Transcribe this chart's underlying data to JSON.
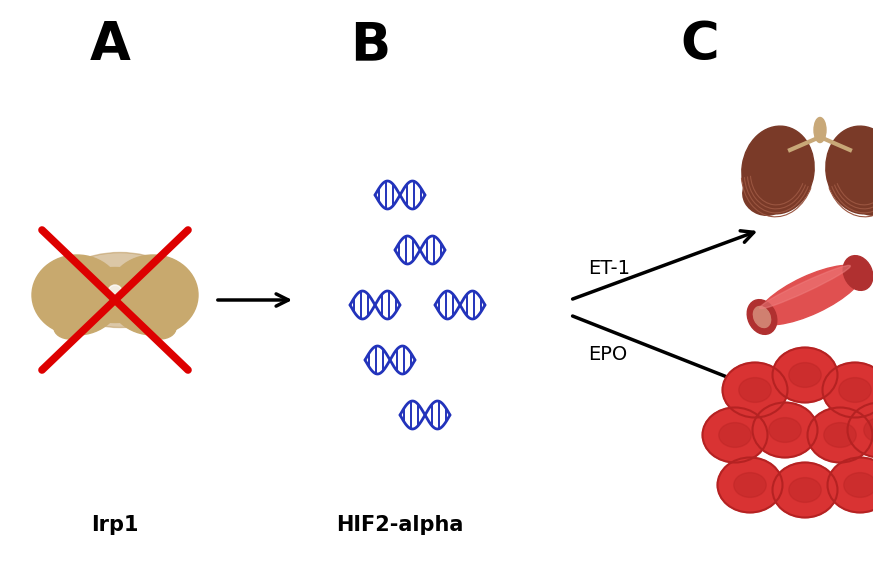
{
  "bg_color": "#ffffff",
  "panel_labels": [
    "A",
    "B",
    "C"
  ],
  "panel_label_fontsize": 38,
  "panel_label_fontweight": "bold",
  "caption_labels": [
    "Irp1",
    "HIF2-alpha"
  ],
  "caption_fontsize": 15,
  "label_fontsize": 14,
  "dna_color": "#2233bb",
  "cross_color": "#dd0000",
  "kidney_color_main": "#c8a96e",
  "kidney_color_dark": "#b89050",
  "lung_color": "#7a3a28",
  "lung_color_light": "#a05040",
  "vessel_color": "#e05050",
  "vessel_color_dark": "#b03030",
  "vessel_color_inner": "#d08070",
  "rbc_color": "#d93333",
  "rbc_color_dark": "#b52222"
}
